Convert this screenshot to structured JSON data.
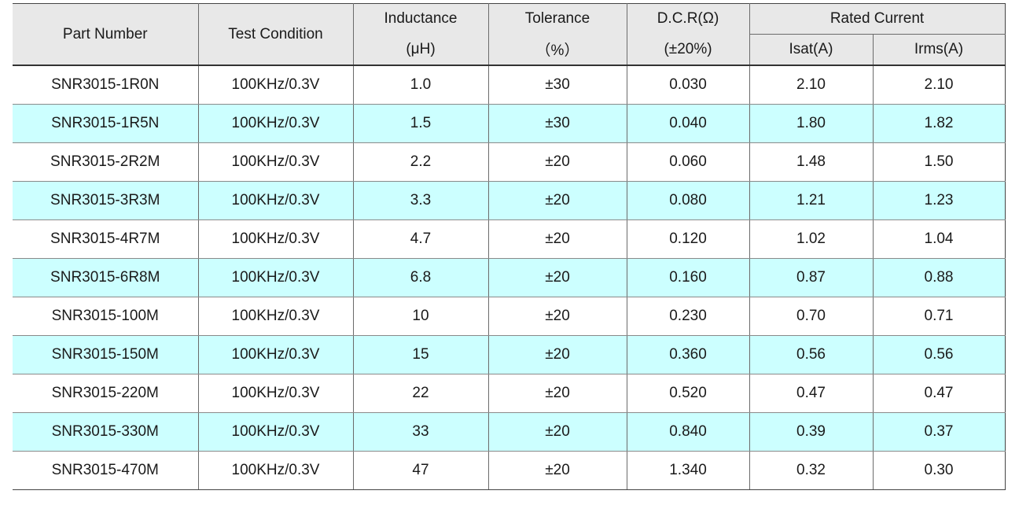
{
  "headers": {
    "part_number": "Part Number",
    "test_condition": "Test Condition",
    "inductance_top": "Inductance",
    "inductance_unit": "(μH)",
    "tolerance_top": "Tolerance",
    "tolerance_unit": "（%）",
    "dcr_top": "D.C.R(Ω)",
    "dcr_unit": "(±20%)",
    "rated_current": "Rated Current",
    "isat": "Isat(A)",
    "irms": "Irms(A)"
  },
  "rows": [
    {
      "part": "SNR3015-1R0N",
      "test": "100KHz/0.3V",
      "ind": "1.0",
      "tol": "±30",
      "dcr": "0.030",
      "isat": "2.10",
      "irms": "2.10"
    },
    {
      "part": "SNR3015-1R5N",
      "test": "100KHz/0.3V",
      "ind": "1.5",
      "tol": "±30",
      "dcr": "0.040",
      "isat": "1.80",
      "irms": "1.82"
    },
    {
      "part": "SNR3015-2R2M",
      "test": "100KHz/0.3V",
      "ind": "2.2",
      "tol": "±20",
      "dcr": "0.060",
      "isat": "1.48",
      "irms": "1.50"
    },
    {
      "part": "SNR3015-3R3M",
      "test": "100KHz/0.3V",
      "ind": "3.3",
      "tol": "±20",
      "dcr": "0.080",
      "isat": "1.21",
      "irms": "1.23"
    },
    {
      "part": "SNR3015-4R7M",
      "test": "100KHz/0.3V",
      "ind": "4.7",
      "tol": "±20",
      "dcr": "0.120",
      "isat": "1.02",
      "irms": "1.04"
    },
    {
      "part": "SNR3015-6R8M",
      "test": "100KHz/0.3V",
      "ind": "6.8",
      "tol": "±20",
      "dcr": "0.160",
      "isat": "0.87",
      "irms": "0.88"
    },
    {
      "part": "SNR3015-100M",
      "test": "100KHz/0.3V",
      "ind": "10",
      "tol": "±20",
      "dcr": "0.230",
      "isat": "0.70",
      "irms": "0.71"
    },
    {
      "part": "SNR3015-150M",
      "test": "100KHz/0.3V",
      "ind": "15",
      "tol": "±20",
      "dcr": "0.360",
      "isat": "0.56",
      "irms": "0.56"
    },
    {
      "part": "SNR3015-220M",
      "test": "100KHz/0.3V",
      "ind": "22",
      "tol": "±20",
      "dcr": "0.520",
      "isat": "0.47",
      "irms": "0.47"
    },
    {
      "part": "SNR3015-330M",
      "test": "100KHz/0.3V",
      "ind": "33",
      "tol": "±20",
      "dcr": "0.840",
      "isat": "0.39",
      "irms": "0.37"
    },
    {
      "part": "SNR3015-470M",
      "test": "100KHz/0.3V",
      "ind": "47",
      "tol": "±20",
      "dcr": "1.340",
      "isat": "0.32",
      "irms": "0.30"
    }
  ],
  "colors": {
    "header_bg": "#e8e8e8",
    "stripe_bg": "#ccffff",
    "plain_bg": "#ffffff"
  }
}
